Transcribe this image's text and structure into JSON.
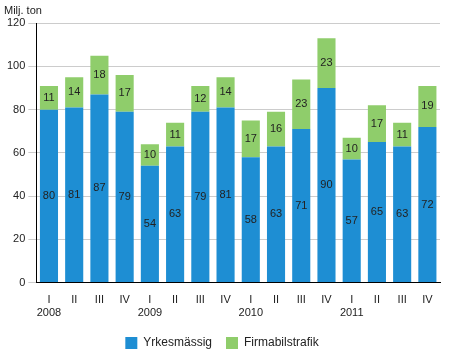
{
  "chart_data": {
    "type": "bar",
    "y_label": "Milj. ton",
    "categories": [
      [
        "I",
        "2008"
      ],
      "II",
      "III",
      "IV",
      [
        "I",
        "2009"
      ],
      "II",
      "III",
      "IV",
      [
        "I",
        "2010"
      ],
      "II",
      "III",
      "IV",
      [
        "I",
        "2011"
      ],
      "II",
      "III",
      "IV"
    ],
    "series": [
      {
        "name": "Yrkesmässig",
        "color": "#1e8ed3",
        "values": [
          80,
          81,
          87,
          79,
          54,
          63,
          79,
          81,
          58,
          63,
          71,
          90,
          57,
          65,
          63,
          72
        ]
      },
      {
        "name": "Firmabilstrafik",
        "color": "#8fcd6b",
        "values": [
          11,
          14,
          18,
          17,
          10,
          11,
          12,
          14,
          17,
          16,
          23,
          23,
          10,
          17,
          11,
          19
        ]
      }
    ],
    "stacked": true,
    "data_labels": true,
    "ylim": [
      0,
      120
    ],
    "yticks": [
      0,
      20,
      40,
      60,
      80,
      100,
      120
    ],
    "grid": true,
    "legend": "bottom"
  }
}
